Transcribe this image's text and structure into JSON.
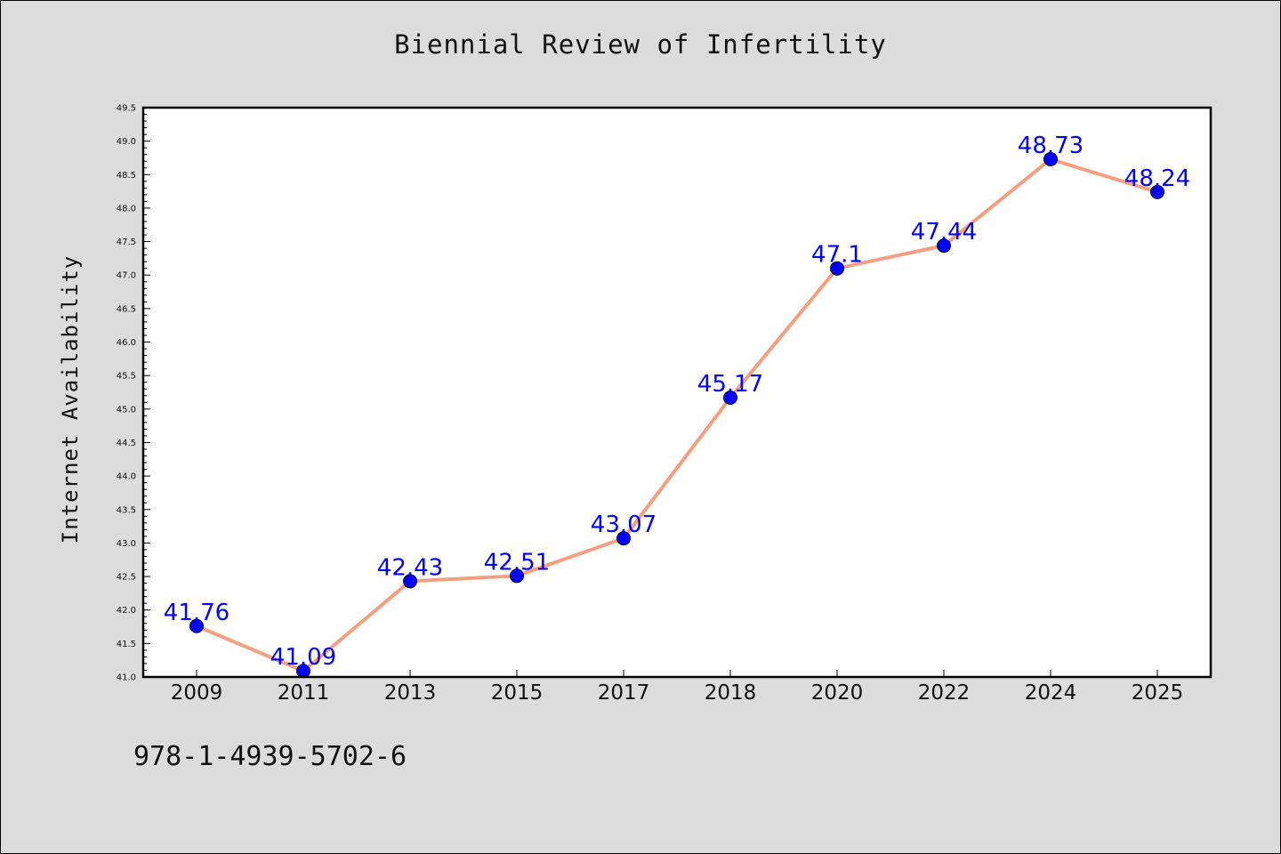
{
  "chart_data": {
    "type": "line",
    "title": "Biennial Review of Infertility",
    "ylabel": "Internet Availability",
    "xlabel": "",
    "categories": [
      "2009",
      "2011",
      "2013",
      "2015",
      "2017",
      "2018",
      "2020",
      "2022",
      "2024",
      "2025"
    ],
    "series": [
      {
        "values": [
          41.76,
          41.09,
          42.43,
          42.51,
          43.07,
          45.17,
          47.1,
          47.44,
          48.73,
          48.24
        ],
        "data_labels": [
          "41.76",
          "41.09",
          "42.43",
          "42.51",
          "43.07",
          "45.17",
          "47.1",
          "47.44",
          "48.73",
          "48.24"
        ]
      }
    ],
    "ylim": [
      41.0,
      49.5
    ],
    "yticks": [
      "41.0",
      "41.5",
      "42.0",
      "42.5",
      "43.0",
      "43.5",
      "44.0",
      "44.5",
      "45.0",
      "45.5",
      "46.0",
      "46.5",
      "47.0",
      "47.5",
      "48.0",
      "48.5",
      "49.0",
      "49.5"
    ],
    "grid": false,
    "colors": {
      "line": "#f4a080",
      "marker": "#0000ff",
      "label": "#0000ff",
      "plot_background": "#ffffff",
      "figure_background": "#dcdcdc"
    }
  },
  "footer": {
    "isbn": "978-1-4939-5702-6"
  }
}
